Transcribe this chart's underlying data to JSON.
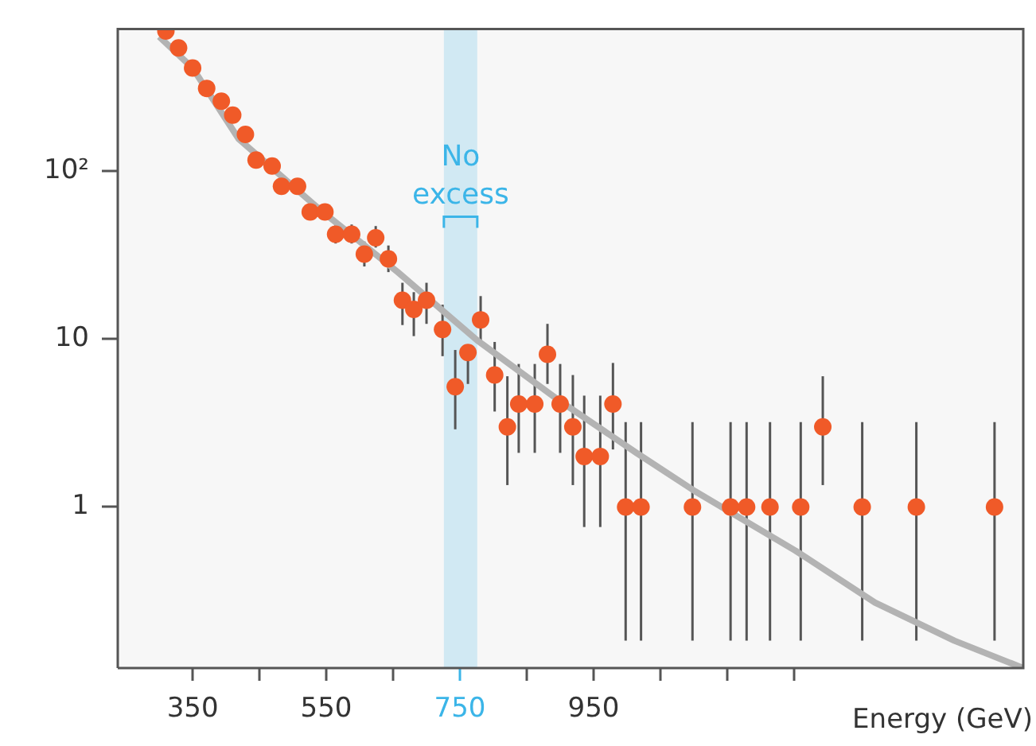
{
  "chart_data": {
    "type": "scatter",
    "xlabel": "Energy (GeV)",
    "log": "y",
    "grid": false,
    "legend": false,
    "marker": "circle",
    "xlim": [
      238,
      1593
    ],
    "ylim": [
      0.11,
      700
    ],
    "xticks": [
      350,
      {
        "value": 450,
        "label": null
      },
      550,
      {
        "value": 650,
        "label": null
      },
      750,
      {
        "value": 850,
        "label": null
      },
      950,
      {
        "value": 1050,
        "label": null
      },
      {
        "value": 1150,
        "label": null
      },
      {
        "value": 1250,
        "label": null
      }
    ],
    "yticks": [
      1,
      10,
      {
        "value": 100,
        "label": "10²"
      }
    ],
    "bands": [
      {
        "axis": "x",
        "from": 726,
        "to": 776,
        "label": "No excess",
        "color": "#3bb5e8"
      }
    ],
    "series": [
      {
        "type": "scatter",
        "color": "#f05a28",
        "x": [
          310,
          329,
          350,
          371,
          393,
          410,
          429,
          445,
          469,
          483,
          507,
          526,
          548,
          564,
          588,
          607,
          624,
          643,
          664,
          681,
          700,
          724,
          743,
          762,
          781,
          802,
          821,
          838,
          862,
          881,
          900,
          919,
          936,
          960,
          979,
          998,
          1021,
          1098,
          1155,
          1179,
          1214,
          1260,
          1293,
          1352,
          1433,
          1550
        ],
        "values": [
          680,
          540,
          410,
          310,
          260,
          215,
          165,
          116,
          107,
          81,
          81,
          57,
          57,
          42,
          42,
          32,
          40,
          30,
          17,
          15,
          17,
          11.4,
          5.2,
          8.3,
          13,
          6.1,
          3,
          4.1,
          4.1,
          8.1,
          4.1,
          3,
          2,
          2,
          4.1,
          1,
          1,
          1,
          1,
          1,
          1,
          1,
          3,
          1,
          1,
          1
        ],
        "errors": [
          null,
          null,
          null,
          null,
          null,
          null,
          null,
          null,
          null,
          null,
          null,
          null,
          null,
          [
            37,
            48
          ],
          [
            37,
            48
          ],
          [
            27,
            38
          ],
          [
            35,
            47
          ],
          [
            25,
            36
          ],
          [
            12.1,
            21.6
          ],
          [
            10.4,
            19
          ],
          [
            12.3,
            21.6
          ],
          [
            7.9,
            16
          ],
          [
            2.9,
            8.6
          ],
          [
            5.4,
            8.8
          ],
          [
            9.8,
            18
          ],
          [
            3.7,
            9.6
          ],
          [
            1.35,
            6
          ],
          [
            2.1,
            7.1
          ],
          [
            2.1,
            7.1
          ],
          [
            5.4,
            12.3
          ],
          [
            2.1,
            7.1
          ],
          [
            1.35,
            6.1
          ],
          [
            0.76,
            4.6
          ],
          [
            0.76,
            4.6
          ],
          [
            2.2,
            7.2
          ],
          [
            0.16,
            3.2
          ],
          [
            0.16,
            3.2
          ],
          [
            0.16,
            3.2
          ],
          [
            0.16,
            3.2
          ],
          [
            0.16,
            3.2
          ],
          [
            0.16,
            3.2
          ],
          [
            0.16,
            3.2
          ],
          [
            1.35,
            6
          ],
          [
            0.16,
            3.2
          ],
          [
            0.16,
            3.2
          ],
          [
            0.16,
            3.2
          ]
        ]
      },
      {
        "type": "line",
        "color": "#b3b3b3",
        "marker": "none",
        "x": [
          300,
          350,
          419,
          538,
          657,
          776,
          895,
          1014,
          1102,
          1252,
          1371,
          1490,
          1593
        ],
        "values": [
          630,
          410,
          155,
          60,
          25,
          9.8,
          4.4,
          2.1,
          1.24,
          0.55,
          0.27,
          0.16,
          0.11
        ]
      }
    ]
  }
}
